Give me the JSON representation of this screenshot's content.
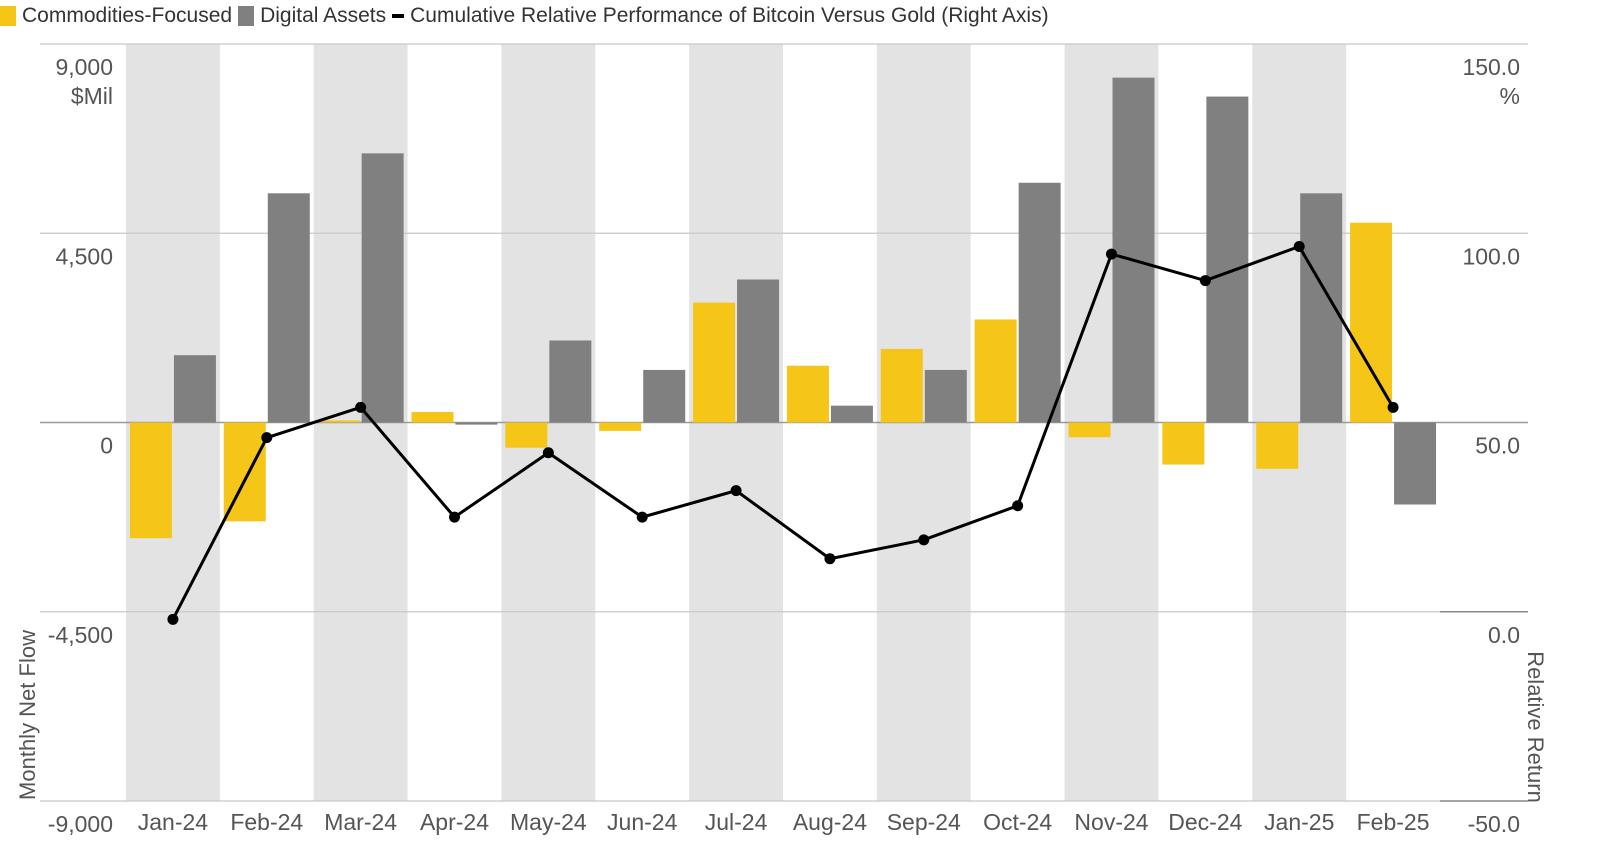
{
  "chart_data": {
    "type": "bar",
    "title": "",
    "categories": [
      "Jan-24",
      "Feb-24",
      "Mar-24",
      "Apr-24",
      "May-24",
      "Jun-24",
      "Jul-24",
      "Aug-24",
      "Sep-24",
      "Oct-24",
      "Nov-24",
      "Dec-24",
      "Jan-25",
      "Feb-25"
    ],
    "series": [
      {
        "name": "Commodities-Focused",
        "type": "bar",
        "axis": "left",
        "color": "#F5C518",
        "values": [
          -2750,
          -2350,
          50,
          250,
          -600,
          -200,
          2850,
          1350,
          1750,
          2450,
          -350,
          -1000,
          -1100,
          4750
        ]
      },
      {
        "name": "Digital Assets",
        "type": "bar",
        "axis": "left",
        "color": "#808080",
        "values": [
          1600,
          5450,
          6400,
          -50,
          1950,
          1250,
          3400,
          400,
          1250,
          5700,
          8200,
          7750,
          5450,
          -1950
        ]
      },
      {
        "name": "Cumulative Relative Performance of Bitcoin Versus Gold (Right Axis)",
        "type": "line",
        "axis": "right",
        "color": "#000000",
        "values": [
          -2.0,
          46.0,
          54.0,
          25.0,
          42.0,
          25.0,
          32.0,
          14.0,
          19.0,
          28.0,
          94.5,
          87.5,
          96.5,
          54.0
        ]
      }
    ],
    "left_axis": {
      "label": "Monthly Net Flow",
      "unit": "$Mil",
      "ylim": [
        -9000,
        9000
      ],
      "ticks": [
        "9,000",
        "4,500",
        "0",
        "-4,500",
        "-9,000"
      ]
    },
    "right_axis": {
      "label": "Relative Return",
      "unit": "%",
      "ylim": [
        -50,
        150
      ],
      "ticks": [
        "150.0",
        "100.0",
        "50.0",
        "0.0",
        "-50.0"
      ]
    },
    "alternate_column_shading": true,
    "legend_position": "top-left"
  }
}
